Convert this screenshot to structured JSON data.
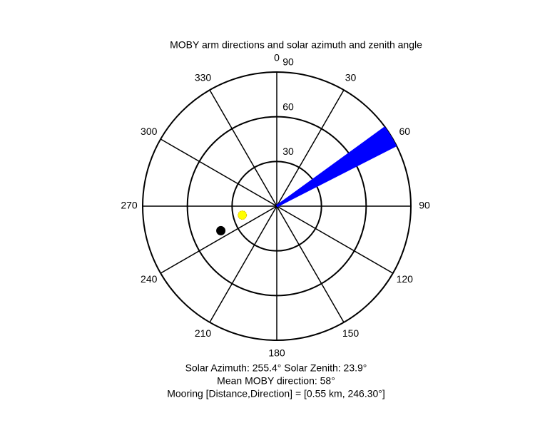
{
  "chart_data": {
    "type": "polar",
    "title": "MOBY arm directions and solar azimuth and zenith angle",
    "theta_zero": "north",
    "theta_direction": "clockwise",
    "rlim": [
      0,
      90
    ],
    "rticks": [
      30,
      60,
      90
    ],
    "thetaticks": [
      0,
      30,
      60,
      90,
      120,
      150,
      180,
      210,
      240,
      270,
      300,
      330
    ],
    "series": [
      {
        "mode": "rays",
        "color": "#0000ff",
        "theta": [
          54,
          54.5,
          55,
          55.5,
          56,
          56.5,
          57,
          57.5,
          58,
          58.5,
          59,
          59.5,
          60,
          60.5,
          61,
          61.5,
          62,
          62.5,
          63
        ],
        "r": [
          90,
          90,
          90,
          90,
          90,
          90,
          90,
          90,
          90,
          90,
          90,
          90,
          90,
          90,
          90,
          90,
          90,
          90,
          90
        ]
      },
      {
        "mode": "marker",
        "color": "#ffff00",
        "theta": [
          255.4
        ],
        "r": [
          23.9
        ]
      },
      {
        "mode": "marker",
        "color": "#000000",
        "theta": [
          246.3
        ],
        "r": [
          41
        ]
      }
    ],
    "annotations": [
      "Solar Azimuth: 255.4°   Solar Zenith: 23.9°",
      "Mean MOBY direction: 58°",
      "Mooring [Distance,Direction] = [0.55 km, 246.30°]"
    ]
  }
}
